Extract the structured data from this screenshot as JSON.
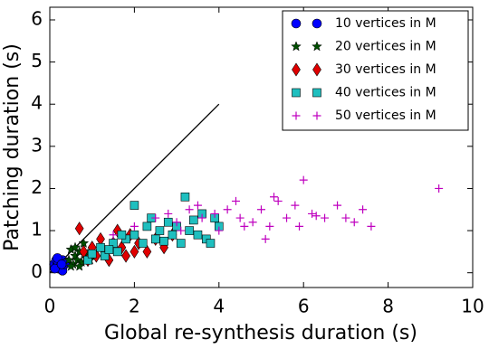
{
  "chart_data": {
    "type": "scatter",
    "x_label": "Global re-synthesis duration (s)",
    "y_label": "Patching duration (s)",
    "xlim": [
      0,
      10
    ],
    "ylim": [
      -0.35,
      6.3
    ],
    "xticks": [
      0,
      2,
      4,
      6,
      8,
      10
    ],
    "yticks": [
      0,
      1,
      2,
      3,
      4,
      5,
      6
    ],
    "legend_loc": "upper right",
    "reference_line": {
      "color": "#000000",
      "x": [
        0,
        4
      ],
      "y": [
        0,
        4
      ]
    },
    "series": [
      {
        "name": "10 vertices in M",
        "color": "#0000ff",
        "marker": "circle",
        "x": [
          0.1,
          0.15,
          0.2,
          0.2,
          0.25,
          0.3,
          0.3,
          0.35,
          0.12,
          0.4,
          0.18,
          0.28
        ],
        "y": [
          0.2,
          0.3,
          0.1,
          0.25,
          0.15,
          0.3,
          0.05,
          0.2,
          0.1,
          0.25,
          0.35,
          0.2
        ]
      },
      {
        "name": "20 vertices in M",
        "color": "#004d00",
        "marker": "star",
        "x": [
          0.45,
          0.5,
          0.55,
          0.6,
          0.65,
          0.7,
          0.75,
          0.8,
          0.85,
          0.9,
          0.5,
          0.95,
          0.6,
          0.7
        ],
        "y": [
          0.3,
          0.55,
          0.2,
          0.4,
          0.3,
          0.5,
          0.25,
          0.7,
          0.35,
          0.45,
          0.15,
          0.3,
          0.6,
          0.15
        ]
      },
      {
        "name": "30 vertices in M",
        "color": "#e00000",
        "marker": "diamond",
        "x": [
          0.7,
          0.8,
          0.9,
          1.0,
          1.1,
          1.2,
          1.3,
          1.5,
          1.7,
          1.9,
          2.1,
          2.3,
          2.5,
          2.7,
          2.9,
          1.4,
          1.8,
          2.0,
          1.6
        ],
        "y": [
          1.05,
          0.5,
          0.3,
          0.6,
          0.4,
          0.8,
          0.5,
          0.7,
          0.6,
          0.9,
          0.7,
          0.5,
          0.8,
          0.6,
          0.9,
          0.3,
          0.4,
          0.5,
          1.0
        ]
      },
      {
        "name": "40 vertices in M",
        "color": "#1fbfbf",
        "marker": "square",
        "x": [
          0.9,
          1.0,
          1.2,
          1.3,
          1.5,
          1.6,
          1.8,
          2.0,
          2.0,
          2.2,
          2.3,
          2.5,
          2.6,
          2.8,
          2.9,
          3.0,
          3.1,
          3.2,
          3.3,
          3.5,
          3.6,
          3.7,
          3.9,
          4.0,
          3.4,
          2.4,
          1.4,
          1.7,
          2.7,
          3.8
        ],
        "y": [
          0.3,
          0.45,
          0.6,
          0.4,
          0.7,
          0.5,
          0.8,
          1.6,
          0.9,
          0.7,
          1.1,
          0.8,
          1.0,
          1.2,
          0.9,
          1.1,
          0.7,
          1.8,
          1.0,
          0.9,
          1.4,
          0.8,
          1.3,
          1.1,
          1.25,
          1.3,
          0.55,
          0.9,
          0.75,
          0.7
        ]
      },
      {
        "name": "50 vertices in M",
        "color": "#bf00bf",
        "marker": "plus",
        "x": [
          1.5,
          2.0,
          2.5,
          3.0,
          3.3,
          3.6,
          3.9,
          4.2,
          4.5,
          4.8,
          5.0,
          5.2,
          5.4,
          5.6,
          5.8,
          6.0,
          6.2,
          6.5,
          6.8,
          7.0,
          7.2,
          7.4,
          9.2,
          4.0,
          4.4,
          5.1,
          5.3,
          6.3,
          7.6,
          3.1,
          2.8,
          4.6,
          3.5,
          5.9
        ],
        "y": [
          0.9,
          1.1,
          1.3,
          1.2,
          1.5,
          1.3,
          1.4,
          1.5,
          1.3,
          1.2,
          1.5,
          1.1,
          1.7,
          1.3,
          1.6,
          2.2,
          1.4,
          1.3,
          1.6,
          1.3,
          1.2,
          1.5,
          2.0,
          1.0,
          1.7,
          0.8,
          1.8,
          1.35,
          1.1,
          1.0,
          1.4,
          1.1,
          1.6,
          1.1
        ]
      }
    ]
  }
}
